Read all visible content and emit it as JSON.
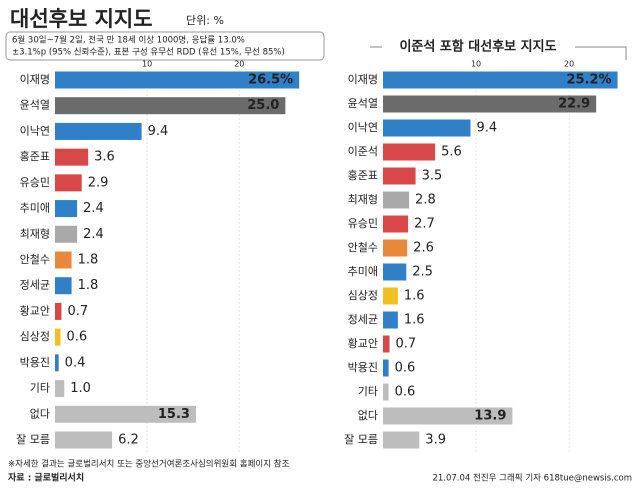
{
  "header": {
    "title": "대선후보 지지도",
    "unit": "단위: %",
    "notes": [
      "6월 30일~7월 2일, 전국 만 18세 이상 1000명, 응답률 13.0%",
      "±3.1%p (95% 신뢰수준), 표본 구성 유무선 RDD (유선 15%, 무선 85%)"
    ]
  },
  "chart_data": [
    {
      "type": "bar",
      "orientation": "horizontal",
      "categories": [
        "이재명",
        "윤석열",
        "이낙연",
        "홍준표",
        "유승민",
        "추미애",
        "최재형",
        "안철수",
        "정세균",
        "황교안",
        "심상정",
        "박용진",
        "기타",
        "없다",
        "잘 모름"
      ],
      "values": [
        26.5,
        25.0,
        9.4,
        3.6,
        2.9,
        2.4,
        2.4,
        1.8,
        1.8,
        0.7,
        0.6,
        0.4,
        1.0,
        15.3,
        6.2
      ],
      "value_labels": [
        "26.5%",
        "25.0",
        "9.4",
        "3.6",
        "2.9",
        "2.4",
        "2.4",
        "1.8",
        "1.8",
        "0.7",
        "0.6",
        "0.4",
        "1.0",
        "15.3",
        "6.2"
      ],
      "colors": [
        "#2f80c8",
        "#6b6b6b",
        "#2f80c8",
        "#d84848",
        "#d84848",
        "#2f80c8",
        "#a9a9a9",
        "#e8883a",
        "#2f80c8",
        "#d84848",
        "#f0c020",
        "#2f80c8",
        "#bdbdbd",
        "#bdbdbd",
        "#bdbdbd"
      ],
      "xlim": [
        0,
        28
      ],
      "xticks": [
        10,
        20
      ]
    },
    {
      "type": "bar",
      "orientation": "horizontal",
      "title": "이준석 포함 대선후보 지지도",
      "categories": [
        "이재명",
        "윤석열",
        "이낙연",
        "이준석",
        "홍준표",
        "최재형",
        "유승민",
        "안철수",
        "추미애",
        "심상정",
        "정세균",
        "황교안",
        "박용진",
        "기타",
        "없다",
        "잘 모름"
      ],
      "values": [
        25.2,
        22.9,
        9.4,
        5.6,
        3.5,
        2.8,
        2.7,
        2.6,
        2.5,
        1.6,
        1.6,
        0.7,
        0.6,
        0.6,
        13.9,
        3.9
      ],
      "value_labels": [
        "25.2%",
        "22.9",
        "9.4",
        "5.6",
        "3.5",
        "2.8",
        "2.7",
        "2.6",
        "2.5",
        "1.6",
        "1.6",
        "0.7",
        "0.6",
        "0.6",
        "13.9",
        "3.9"
      ],
      "colors": [
        "#2f80c8",
        "#6b6b6b",
        "#2f80c8",
        "#d84848",
        "#d84848",
        "#a9a9a9",
        "#d84848",
        "#e8883a",
        "#2f80c8",
        "#f0c020",
        "#2f80c8",
        "#d84848",
        "#2f80c8",
        "#bdbdbd",
        "#bdbdbd",
        "#bdbdbd"
      ],
      "xlim": [
        0,
        26
      ],
      "xticks": [
        10,
        20
      ]
    }
  ],
  "footer": {
    "note": "※자세한 결과는 글로벌리서치 또는 중앙선거여론조사심의위원회 홈페이지 참조",
    "source": "자료 : 글로벌리서치",
    "credit": "21.07.04 전진우 그래픽 기자 618tue@newsis.com"
  }
}
